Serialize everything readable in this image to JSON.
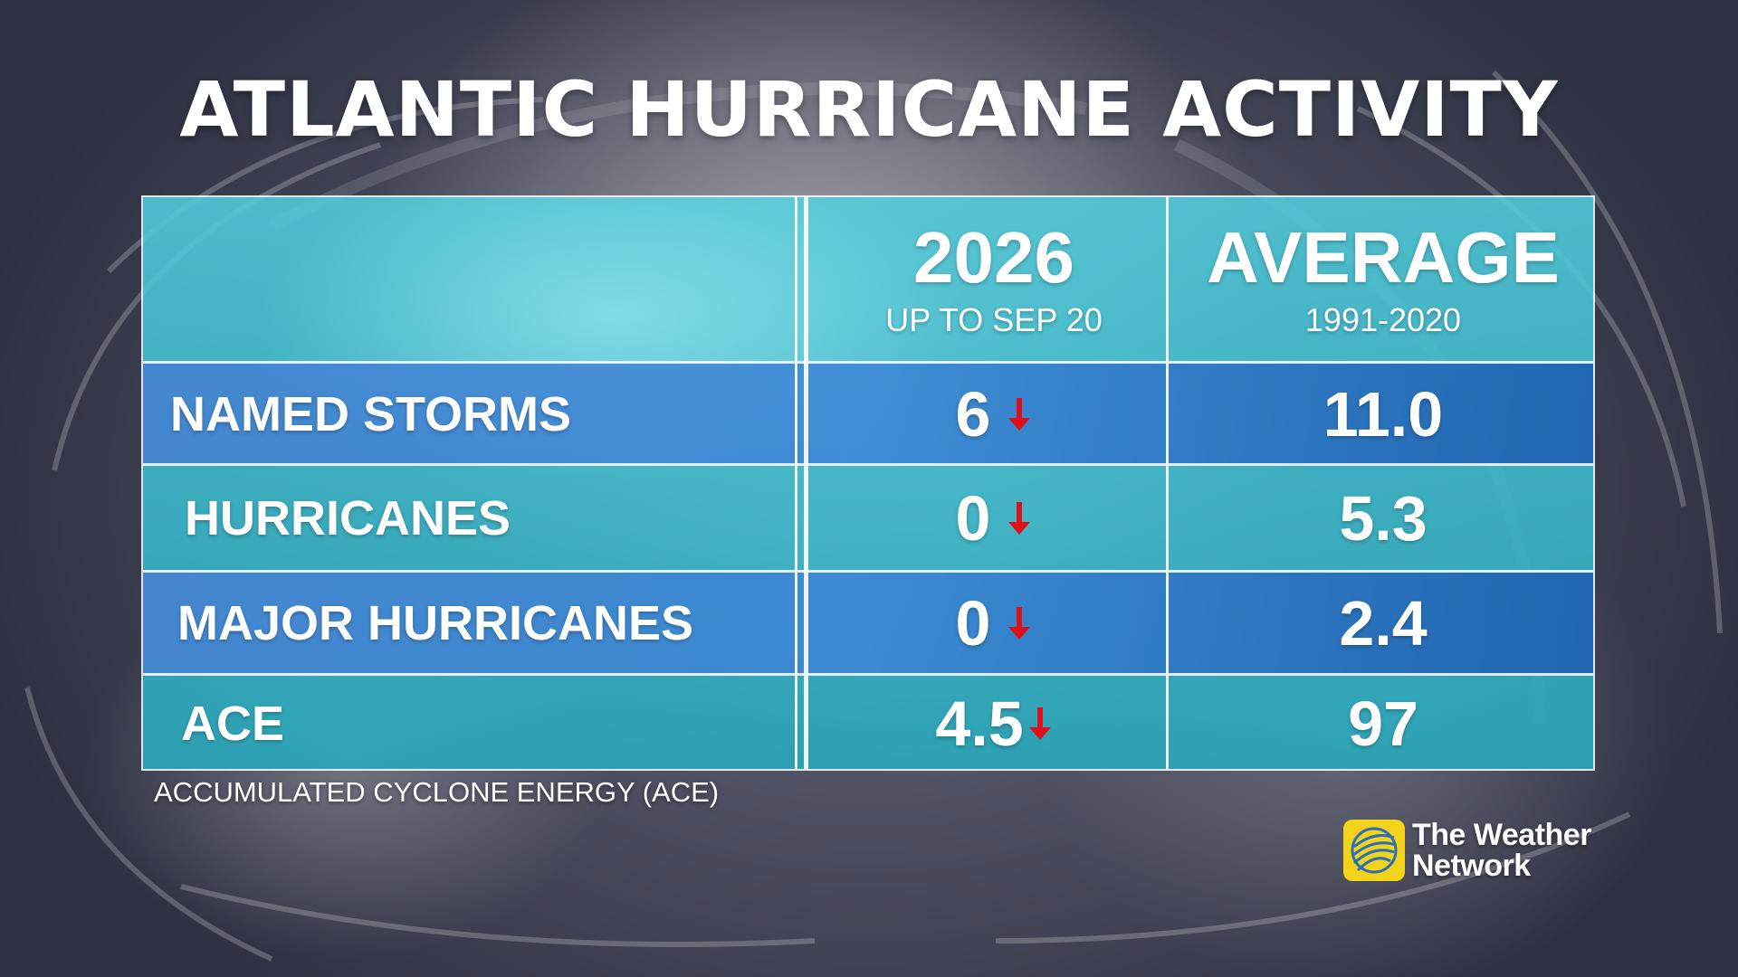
{
  "title": "ATLANTIC HURRICANE ACTIVITY",
  "columns": {
    "current": {
      "year": "2026",
      "note": "UP TO SEP 20"
    },
    "average": {
      "label": "AVERAGE",
      "note": "1991-2020"
    }
  },
  "rows": [
    {
      "label": "NAMED STORMS",
      "current": "6",
      "average": "11.0",
      "trend": "down"
    },
    {
      "label": "HURRICANES",
      "current": "0",
      "average": "5.3",
      "trend": "down"
    },
    {
      "label": "MAJOR HURRICANES",
      "current": "0",
      "average": "2.4",
      "trend": "down"
    },
    {
      "label": "ACE",
      "current": "4.5",
      "average": "97",
      "trend": "down"
    }
  ],
  "footnote": "ACCUMULATED CYCLONE ENERGY (ACE)",
  "brand": {
    "line1": "The Weather",
    "line2": "Network"
  },
  "colors": {
    "trend_down": "#e0101a",
    "logo_yellow": "#f2d21b"
  }
}
